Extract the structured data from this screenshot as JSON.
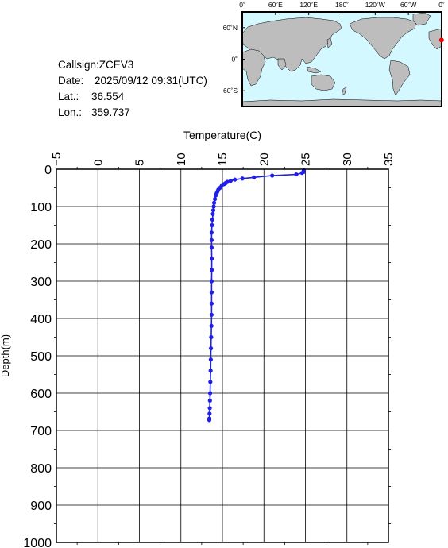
{
  "info": {
    "callsign": "Callsign:ZCEV3",
    "date_label": "Date:",
    "date_value": "2025/09/12 09:31(UTC)",
    "lat_label": "Lat.:",
    "lat_value": "36.554",
    "lon_label": "Lon.:",
    "lon_value": "359.737"
  },
  "map": {
    "top_ticks": [
      "0˚",
      "60˚E",
      "120˚E",
      "180˚",
      "120˚W",
      "60˚W",
      "0˚"
    ],
    "left_ticks": [
      "60˚N",
      "0˚",
      "60˚S"
    ],
    "ocean_color": "#d4f8ff",
    "land_color": "#bdbdbd",
    "marker_color": "#ff0000",
    "marker_lon": 359.737,
    "marker_lat": 36.554
  },
  "chart_data": {
    "type": "line",
    "title": "",
    "xlabel": "Temperature(C)",
    "ylabel": "Depth(m)",
    "xlim": [
      -5,
      35
    ],
    "ylim": [
      0,
      1000
    ],
    "y_inverted": true,
    "x_axis_position": "top",
    "x_ticks": [
      -5,
      0,
      5,
      10,
      15,
      20,
      25,
      30,
      35
    ],
    "y_ticks": [
      0,
      100,
      200,
      300,
      400,
      500,
      600,
      700,
      800,
      900,
      1000
    ],
    "grid": true,
    "series": [
      {
        "color": "#1f1fe6",
        "points": [
          [
            24.8,
            3
          ],
          [
            24.8,
            7
          ],
          [
            24.6,
            10
          ],
          [
            23.9,
            14
          ],
          [
            21.0,
            17
          ],
          [
            18.8,
            22
          ],
          [
            17.4,
            25
          ],
          [
            16.5,
            28
          ],
          [
            16.0,
            31
          ],
          [
            15.6,
            34
          ],
          [
            15.4,
            37
          ],
          [
            15.2,
            40
          ],
          [
            14.9,
            45
          ],
          [
            14.7,
            50
          ],
          [
            14.5,
            55
          ],
          [
            14.4,
            60
          ],
          [
            14.3,
            65
          ],
          [
            14.2,
            70
          ],
          [
            14.1,
            80
          ],
          [
            14.0,
            90
          ],
          [
            13.95,
            100
          ],
          [
            13.9,
            110
          ],
          [
            13.85,
            120
          ],
          [
            13.8,
            135
          ],
          [
            13.75,
            150
          ],
          [
            13.7,
            170
          ],
          [
            13.7,
            190
          ],
          [
            13.7,
            210
          ],
          [
            13.72,
            240
          ],
          [
            13.72,
            270
          ],
          [
            13.7,
            300
          ],
          [
            13.7,
            330
          ],
          [
            13.7,
            360
          ],
          [
            13.7,
            390
          ],
          [
            13.68,
            420
          ],
          [
            13.65,
            450
          ],
          [
            13.62,
            480
          ],
          [
            13.6,
            510
          ],
          [
            13.58,
            540
          ],
          [
            13.55,
            570
          ],
          [
            13.52,
            600
          ],
          [
            13.5,
            620
          ],
          [
            13.48,
            640
          ],
          [
            13.45,
            655
          ],
          [
            13.43,
            668
          ],
          [
            13.42,
            672
          ]
        ]
      }
    ]
  }
}
